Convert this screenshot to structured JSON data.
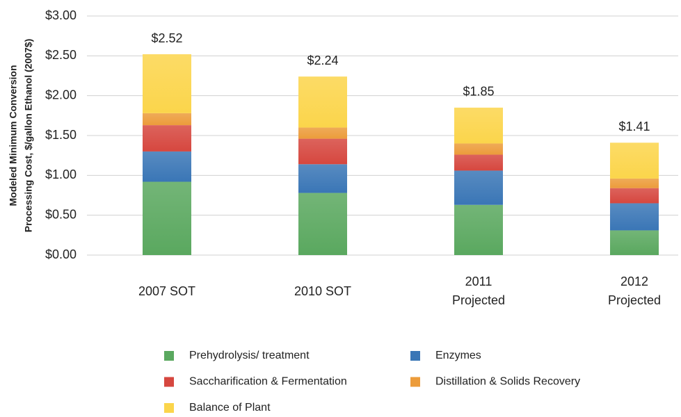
{
  "chart_data": {
    "type": "stacked_bar",
    "ylabel": [
      "Modeled Minimum Conversion",
      "Processing Cost, $/gallon Ethanol (2007$)"
    ],
    "categories": [
      [
        "2007 SOT"
      ],
      [
        "2010 SOT"
      ],
      [
        "2011",
        "Projected"
      ],
      [
        "2012",
        "Projected"
      ]
    ],
    "series": [
      {
        "name": "Prehydrolysis/ treatment",
        "color": "#5aa85f",
        "values": [
          0.92,
          0.78,
          0.63,
          0.31
        ]
      },
      {
        "name": "Enzymes",
        "color": "#3a76b6",
        "values": [
          0.38,
          0.36,
          0.43,
          0.34
        ]
      },
      {
        "name": "Saccharification & Fermentation",
        "color": "#d6473f",
        "values": [
          0.33,
          0.32,
          0.2,
          0.19
        ]
      },
      {
        "name": "Distillation & Solids Recovery",
        "color": "#ec9c3b",
        "values": [
          0.15,
          0.14,
          0.14,
          0.12
        ]
      },
      {
        "name": "Balance of Plant",
        "color": "#fbd54b",
        "values": [
          0.74,
          0.64,
          0.45,
          0.45
        ]
      }
    ],
    "totals": [
      2.52,
      2.24,
      1.85,
      1.41
    ],
    "total_labels": [
      "$2.52",
      "$2.24",
      "$1.85",
      "$1.41"
    ],
    "ylim": [
      0,
      3
    ],
    "yticks": [
      {
        "value": 0,
        "label": "$0.00"
      },
      {
        "value": 0.5,
        "label": "$0.50"
      },
      {
        "value": 1,
        "label": "$1.00"
      },
      {
        "value": 1.5,
        "label": "$1.50"
      },
      {
        "value": 2,
        "label": "$2.00"
      },
      {
        "value": 2.5,
        "label": "$2.50"
      },
      {
        "value": 3,
        "label": "$3.00"
      }
    ],
    "grid": true
  }
}
